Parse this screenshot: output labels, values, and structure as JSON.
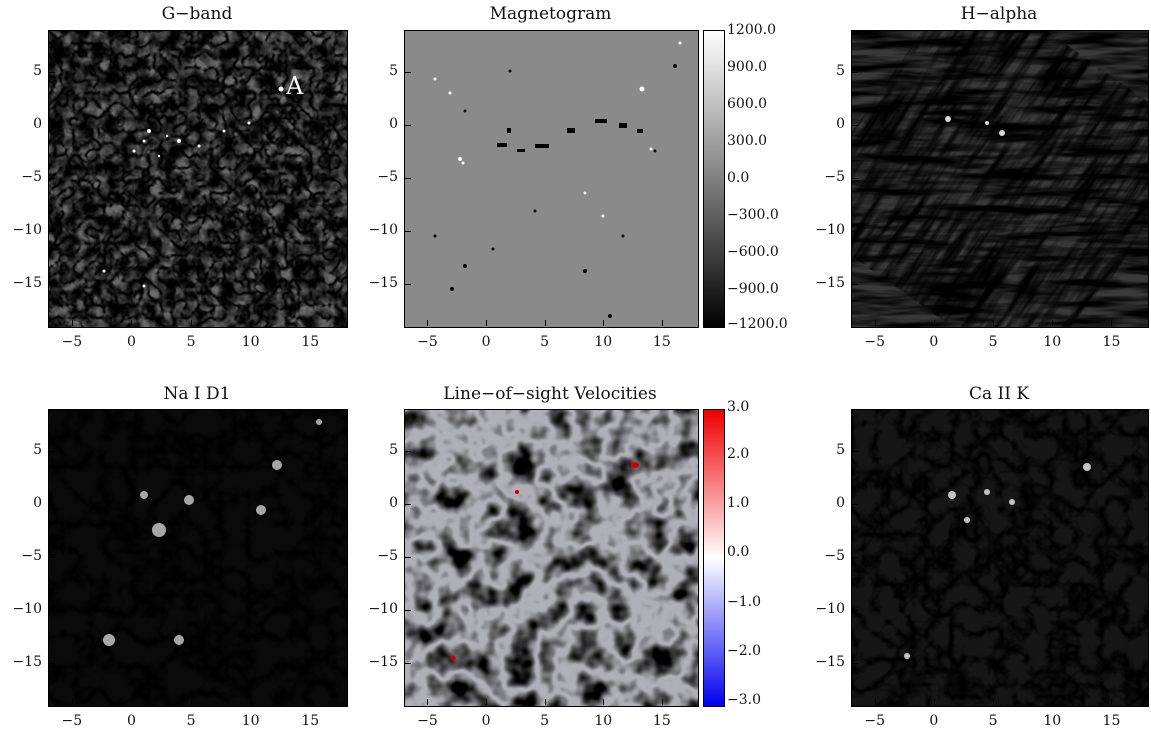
{
  "panels": [
    {
      "title": "G−band",
      "style": "granulation",
      "annotation": "A"
    },
    {
      "title": "Magnetogram",
      "style": "magnetogram"
    },
    {
      "title": "H−alpha",
      "style": "halpha"
    },
    {
      "title": "Na I D1",
      "style": "network"
    },
    {
      "title": "Line−of−sight Velocities",
      "style": "velocity"
    },
    {
      "title": "Ca II K",
      "style": "network"
    }
  ],
  "axes": {
    "x_ticks": [
      "−5",
      "0",
      "5",
      "10",
      "15"
    ],
    "y_ticks": [
      "5",
      "0",
      "−5",
      "−10",
      "−15"
    ]
  },
  "colorbars": {
    "magnetogram": {
      "labels": [
        "1200.0",
        "900.0",
        "600.0",
        "300.0",
        "0.0",
        "−300.0",
        "−600.0",
        "−900.0",
        "−1200.0"
      ],
      "colors": [
        "#ffffff",
        "#000000"
      ]
    },
    "velocity": {
      "labels": [
        "3.0",
        "2.0",
        "1.0",
        "0.0",
        "−1.0",
        "−2.0",
        "−3.0"
      ],
      "colors": [
        "#ee0000",
        "#ffffff",
        "#0000ee"
      ]
    }
  }
}
